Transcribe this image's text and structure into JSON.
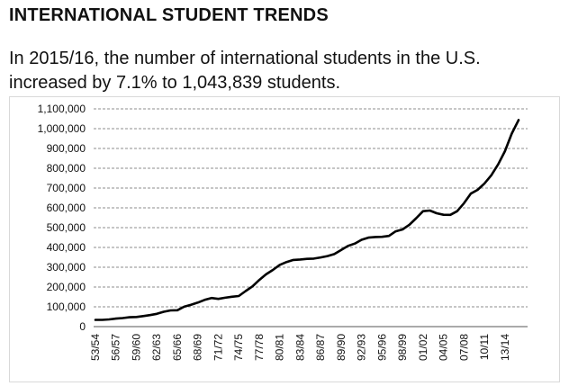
{
  "header": {
    "title": "INTERNATIONAL STUDENT TRENDS",
    "subtitle_line1": "In 2015/16, the number of international students in the U.S.",
    "subtitle_line2": "increased by 7.1% to 1,043,839 students."
  },
  "chart_data": {
    "type": "line",
    "title": "",
    "xlabel": "",
    "ylabel": "",
    "ylim": [
      0,
      1100000
    ],
    "yticks": [
      0,
      100000,
      200000,
      300000,
      400000,
      500000,
      600000,
      700000,
      800000,
      900000,
      1000000,
      1100000
    ],
    "ytick_labels": [
      "0",
      "100,000",
      "200,000",
      "300,000",
      "400,000",
      "500,000",
      "600,000",
      "700,000",
      "800,000",
      "900,000",
      "1,000,000",
      "1,100,000"
    ],
    "xtick_labels": [
      "53/54",
      "56/57",
      "59/60",
      "62/63",
      "65/66",
      "68/69",
      "71/72",
      "74/75",
      "77/78",
      "80/81",
      "83/84",
      "86/87",
      "89/90",
      "92/93",
      "95/96",
      "98/99",
      "01/02",
      "04/05",
      "07/08",
      "10/11",
      "13/14"
    ],
    "grid": true,
    "grid_style": "dashed",
    "line_color": "#000000",
    "series": [
      {
        "x": [
          "53/54",
          "54/55",
          "55/56",
          "56/57",
          "57/58",
          "58/59",
          "59/60",
          "60/61",
          "61/62",
          "62/63",
          "63/64",
          "64/65",
          "65/66",
          "66/67",
          "67/68",
          "68/69",
          "69/70",
          "70/71",
          "71/72",
          "72/73",
          "73/74",
          "74/75",
          "75/76",
          "76/77",
          "77/78",
          "78/79",
          "79/80",
          "80/81",
          "81/82",
          "82/83",
          "83/84",
          "84/85",
          "85/86",
          "86/87",
          "87/88",
          "88/89",
          "89/90",
          "90/91",
          "91/92",
          "92/93",
          "93/94",
          "94/95",
          "95/96",
          "96/97",
          "97/98",
          "98/99",
          "99/00",
          "00/01",
          "01/02",
          "02/03",
          "03/04",
          "04/05",
          "05/06",
          "06/07",
          "07/08",
          "08/09",
          "09/10",
          "10/11",
          "11/12",
          "12/13",
          "13/14",
          "14/15",
          "15/16"
        ],
        "values": [
          34232,
          34232,
          36494,
          40666,
          43391,
          47245,
          48486,
          53107,
          58086,
          64705,
          74814,
          82045,
          82709,
          100262,
          110315,
          121362,
          134959,
          144708,
          140126,
          146097,
          151066,
          154580,
          179344,
          203068,
          235509,
          263938,
          286343,
          311882,
          326299,
          336985,
          338894,
          342113,
          343777,
          349609,
          356187,
          366354,
          386851,
          407529,
          419585,
          438618,
          449749,
          452635,
          453787,
          457984,
          481280,
          490933,
          514723,
          547867,
          582996,
          586323,
          572509,
          565039,
          564766,
          582984,
          623805,
          671616,
          690923,
          723277,
          764495,
          819644,
          886052,
          974926,
          1043839
        ]
      }
    ]
  }
}
